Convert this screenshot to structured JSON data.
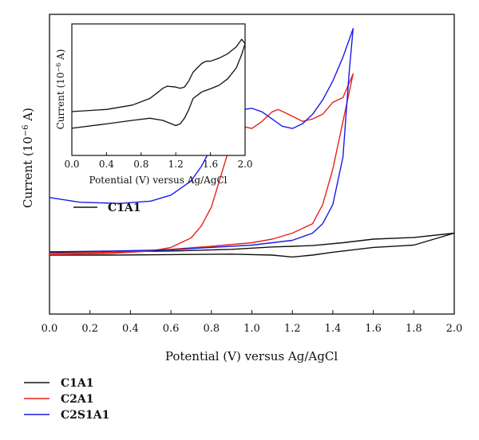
{
  "chart_data": [
    {
      "type": "line",
      "xlabel": "Potential (V) versus Ag/AgCl",
      "ylabel": "Current (10",
      "ylabel_exponent": "−6",
      "ylabel_unit": " A)",
      "xlim": [
        0.0,
        2.0
      ],
      "ylim": [
        -2.6,
        10.0
      ],
      "y_tick_labels_shown": false,
      "x_ticks": [
        "0.0",
        "0.2",
        "0.4",
        "0.6",
        "0.8",
        "1.0",
        "1.2",
        "1.4",
        "1.6",
        "1.8",
        "2.0"
      ],
      "legend_inline": "C1A1",
      "legend": [
        "C1A1",
        "C2A1",
        "C2S1A1"
      ],
      "legend_placement": "below",
      "series": [
        {
          "name": "C1A1",
          "color": "#111111",
          "x": [
            0.0,
            0.3,
            0.6,
            0.9,
            1.1,
            1.2,
            1.3,
            1.45,
            1.6,
            1.8,
            2.0,
            1.8,
            1.6,
            1.5,
            1.4,
            1.3,
            1.2,
            1.1,
            0.9,
            0.6,
            0.3,
            0.0
          ],
          "y": [
            0.0,
            0.02,
            0.05,
            0.12,
            0.22,
            0.25,
            0.28,
            0.4,
            0.55,
            0.62,
            0.8,
            0.3,
            0.2,
            0.1,
            0.0,
            -0.12,
            -0.2,
            -0.12,
            -0.08,
            -0.1,
            -0.12,
            -0.12
          ]
        },
        {
          "name": "C2A1",
          "color": "#e8211c",
          "x": [
            0.0,
            0.3,
            0.5,
            0.6,
            0.7,
            0.75,
            0.8,
            0.85,
            0.9,
            0.95,
            1.0,
            1.05,
            1.1,
            1.13,
            1.18,
            1.25,
            1.3,
            1.35,
            1.4,
            1.45,
            1.5,
            1.45,
            1.4,
            1.35,
            1.3,
            1.2,
            1.1,
            1.0,
            0.8,
            0.6,
            0.3,
            0.0
          ],
          "y": [
            -0.1,
            -0.05,
            0.05,
            0.2,
            0.6,
            1.1,
            1.9,
            3.3,
            4.7,
            5.3,
            5.2,
            5.5,
            5.9,
            6.0,
            5.8,
            5.5,
            5.6,
            5.8,
            6.3,
            6.5,
            7.5,
            5.5,
            3.5,
            2.0,
            1.2,
            0.8,
            0.55,
            0.4,
            0.25,
            0.12,
            0.0,
            -0.05
          ]
        },
        {
          "name": "C2S1A1",
          "color": "#1a1ae6",
          "x": [
            0.0,
            0.15,
            0.35,
            0.5,
            0.6,
            0.7,
            0.75,
            0.8,
            0.85,
            0.9,
            0.95,
            1.0,
            1.05,
            1.1,
            1.15,
            1.2,
            1.25,
            1.3,
            1.35,
            1.4,
            1.45,
            1.5,
            1.48,
            1.45,
            1.4,
            1.35,
            1.3,
            1.2,
            1.0,
            0.8,
            0.6,
            0.3,
            0.0
          ],
          "y": [
            2.3,
            2.1,
            2.05,
            2.15,
            2.4,
            3.0,
            3.6,
            4.4,
            5.3,
            5.7,
            6.0,
            6.05,
            5.9,
            5.6,
            5.3,
            5.2,
            5.4,
            5.8,
            6.4,
            7.2,
            8.2,
            9.4,
            7.5,
            4.0,
            2.0,
            1.2,
            0.8,
            0.5,
            0.3,
            0.2,
            0.1,
            0.05,
            0.02
          ]
        }
      ]
    },
    {
      "type": "line",
      "inset": true,
      "xlabel": "Potential (V) versus Ag/AgCl",
      "ylabel": "Current (10",
      "ylabel_exponent": "−6",
      "ylabel_unit": " A)",
      "xlim": [
        0.0,
        2.0
      ],
      "ylim": [
        -1.0,
        2.0
      ],
      "x_ticks": [
        "0.0",
        "0.4",
        "0.8",
        "1.2",
        "1.6",
        "2.0"
      ],
      "series": [
        {
          "color": "#111111",
          "x": [
            0.0,
            0.4,
            0.7,
            0.9,
            1.0,
            1.05,
            1.1,
            1.2,
            1.25,
            1.3,
            1.35,
            1.4,
            1.5,
            1.55,
            1.6,
            1.7,
            1.8,
            1.9,
            1.96,
            2.0,
            1.96,
            1.9,
            1.8,
            1.7,
            1.6,
            1.5,
            1.4,
            1.35,
            1.3,
            1.25,
            1.2,
            1.15,
            1.05,
            0.9,
            0.7,
            0.4,
            0.0
          ],
          "y": [
            0.0,
            0.05,
            0.15,
            0.3,
            0.45,
            0.53,
            0.58,
            0.56,
            0.53,
            0.56,
            0.7,
            0.9,
            1.1,
            1.15,
            1.15,
            1.22,
            1.32,
            1.48,
            1.65,
            1.55,
            1.3,
            1.0,
            0.75,
            0.6,
            0.52,
            0.45,
            0.3,
            0.05,
            -0.15,
            -0.28,
            -0.32,
            -0.28,
            -0.2,
            -0.15,
            -0.2,
            -0.28,
            -0.38
          ]
        }
      ]
    }
  ]
}
